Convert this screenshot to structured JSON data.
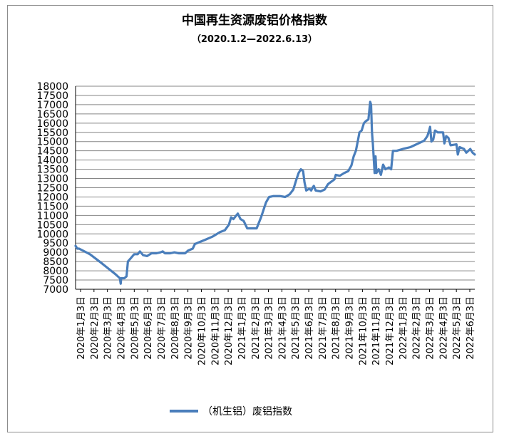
{
  "chart_data": {
    "type": "line",
    "title": "中国再生资源废铝价格指数",
    "subtitle": "（2020.1.2—2022.6.13）",
    "xlabel": "",
    "ylabel": "",
    "ylim": [
      7000,
      18000
    ],
    "y_ticks": [
      "7000",
      "7500",
      "8000",
      "8500",
      "9000",
      "9500",
      "10000",
      "10500",
      "11000",
      "11500",
      "12000",
      "12500",
      "13000",
      "13500",
      "14000",
      "14500",
      "15000",
      "15500",
      "16000",
      "16500",
      "17000",
      "17500",
      "18000"
    ],
    "x_ticks": [
      "2020年1月3日",
      "2020年2月3日",
      "2020年3月3日",
      "2020年4月3日",
      "2020年5月3日",
      "2020年6月3日",
      "2020年7月3日",
      "2020年8月3日",
      "2020年9月3日",
      "2020年10月3日",
      "2020年11月3日",
      "2020年12月3日",
      "2021年1月3日",
      "2021年2月3日",
      "2021年3月3日",
      "2021年4月3日",
      "2021年5月3日",
      "2021年6月3日",
      "2021年7月3日",
      "2021年8月3日",
      "2021年9月3日",
      "2021年10月3日",
      "2021年11月3日",
      "2021年12月3日",
      "2022年1月3日",
      "2022年2月3日",
      "2022年3月3日",
      "2022年4月3日",
      "2022年5月3日",
      "2022年6月3日"
    ],
    "grid": true,
    "legend_position": "bottom",
    "series_color": "#4a7ebb",
    "series": [
      {
        "name": "（机生铝）废铝指数",
        "points": [
          [
            "2020-01-02",
            9350
          ],
          [
            "2020-01-06",
            9200
          ],
          [
            "2020-01-10",
            9200
          ],
          [
            "2020-02-03",
            8900
          ],
          [
            "2020-03-01",
            8400
          ],
          [
            "2020-04-01",
            7800
          ],
          [
            "2020-04-10",
            7600
          ],
          [
            "2020-04-12",
            7300
          ],
          [
            "2020-04-13",
            7600
          ],
          [
            "2020-04-20",
            7600
          ],
          [
            "2020-04-25",
            7700
          ],
          [
            "2020-04-28",
            8500
          ],
          [
            "2020-05-05",
            8700
          ],
          [
            "2020-05-12",
            8900
          ],
          [
            "2020-05-20",
            8900
          ],
          [
            "2020-05-25",
            9050
          ],
          [
            "2020-06-01",
            8850
          ],
          [
            "2020-06-10",
            8800
          ],
          [
            "2020-06-20",
            8950
          ],
          [
            "2020-07-01",
            8950
          ],
          [
            "2020-07-10",
            9000
          ],
          [
            "2020-07-15",
            9050
          ],
          [
            "2020-07-20",
            8950
          ],
          [
            "2020-08-01",
            8950
          ],
          [
            "2020-08-10",
            9000
          ],
          [
            "2020-08-20",
            8950
          ],
          [
            "2020-09-03",
            8950
          ],
          [
            "2020-09-10",
            9100
          ],
          [
            "2020-09-20",
            9200
          ],
          [
            "2020-09-25",
            9450
          ],
          [
            "2020-10-05",
            9550
          ],
          [
            "2020-10-20",
            9700
          ],
          [
            "2020-11-03",
            9850
          ],
          [
            "2020-11-10",
            9950
          ],
          [
            "2020-11-20",
            10100
          ],
          [
            "2020-12-01",
            10200
          ],
          [
            "2020-12-10",
            10500
          ],
          [
            "2020-12-15",
            10900
          ],
          [
            "2020-12-20",
            10800
          ],
          [
            "2020-12-30",
            11100
          ],
          [
            "2021-01-05",
            10800
          ],
          [
            "2021-01-12",
            10700
          ],
          [
            "2021-01-20",
            10300
          ],
          [
            "2021-02-10",
            10300
          ],
          [
            "2021-02-20",
            10900
          ],
          [
            "2021-03-03",
            11700
          ],
          [
            "2021-03-10",
            12000
          ],
          [
            "2021-03-20",
            12050
          ],
          [
            "2021-04-03",
            12050
          ],
          [
            "2021-04-15",
            12000
          ],
          [
            "2021-04-25",
            12150
          ],
          [
            "2021-05-03",
            12400
          ],
          [
            "2021-05-10",
            12950
          ],
          [
            "2021-05-15",
            13300
          ],
          [
            "2021-05-20",
            13500
          ],
          [
            "2021-05-25",
            13400
          ],
          [
            "2021-05-28",
            12800
          ],
          [
            "2021-06-01",
            12350
          ],
          [
            "2021-06-08",
            12450
          ],
          [
            "2021-06-12",
            12350
          ],
          [
            "2021-06-15",
            12500
          ],
          [
            "2021-06-18",
            12600
          ],
          [
            "2021-06-22",
            12350
          ],
          [
            "2021-07-03",
            12300
          ],
          [
            "2021-07-12",
            12400
          ],
          [
            "2021-07-20",
            12700
          ],
          [
            "2021-08-03",
            12950
          ],
          [
            "2021-08-06",
            13200
          ],
          [
            "2021-08-15",
            13150
          ],
          [
            "2021-08-25",
            13300
          ],
          [
            "2021-09-03",
            13400
          ],
          [
            "2021-09-10",
            13700
          ],
          [
            "2021-09-15",
            14200
          ],
          [
            "2021-09-20",
            14500
          ],
          [
            "2021-09-25",
            15100
          ],
          [
            "2021-09-28",
            15500
          ],
          [
            "2021-10-03",
            15600
          ],
          [
            "2021-10-08",
            16000
          ],
          [
            "2021-10-12",
            16100
          ],
          [
            "2021-10-18",
            16200
          ],
          [
            "2021-10-22",
            17150
          ],
          [
            "2021-10-24",
            17000
          ],
          [
            "2021-10-26",
            15500
          ],
          [
            "2021-10-28",
            14900
          ],
          [
            "2021-11-01",
            13300
          ],
          [
            "2021-11-03",
            14200
          ],
          [
            "2021-11-05",
            13300
          ],
          [
            "2021-11-10",
            13500
          ],
          [
            "2021-11-15",
            13200
          ],
          [
            "2021-11-20",
            13750
          ],
          [
            "2021-11-25",
            13500
          ],
          [
            "2021-12-03",
            13600
          ],
          [
            "2021-12-08",
            13500
          ],
          [
            "2021-12-12",
            14500
          ],
          [
            "2021-12-20",
            14500
          ],
          [
            "2022-01-03",
            14600
          ],
          [
            "2022-01-20",
            14700
          ],
          [
            "2022-02-20",
            15050
          ],
          [
            "2022-02-27",
            15300
          ],
          [
            "2022-03-03",
            15600
          ],
          [
            "2022-03-05",
            15800
          ],
          [
            "2022-03-08",
            15000
          ],
          [
            "2022-03-12",
            15100
          ],
          [
            "2022-03-16",
            15600
          ],
          [
            "2022-03-22",
            15500
          ],
          [
            "2022-04-03",
            15500
          ],
          [
            "2022-04-06",
            14900
          ],
          [
            "2022-04-10",
            15300
          ],
          [
            "2022-04-15",
            15200
          ],
          [
            "2022-04-20",
            14800
          ],
          [
            "2022-05-03",
            14850
          ],
          [
            "2022-05-06",
            14300
          ],
          [
            "2022-05-10",
            14700
          ],
          [
            "2022-05-20",
            14600
          ],
          [
            "2022-05-25",
            14400
          ],
          [
            "2022-06-03",
            14600
          ],
          [
            "2022-06-08",
            14400
          ],
          [
            "2022-06-13",
            14300
          ]
        ]
      }
    ]
  }
}
